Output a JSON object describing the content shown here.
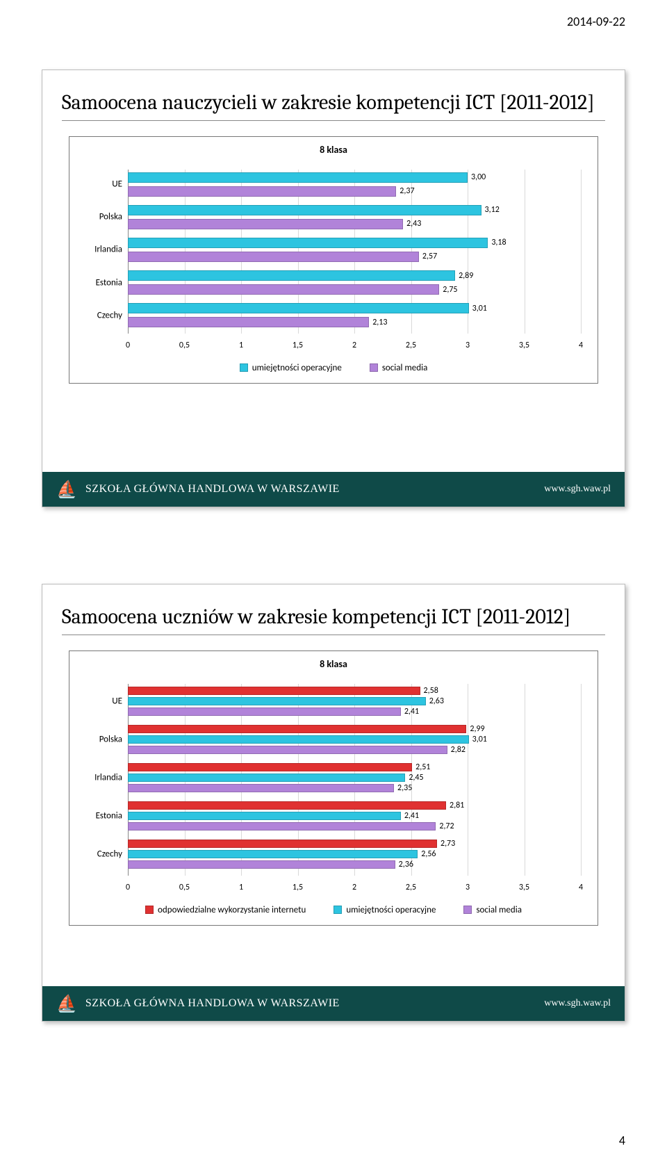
{
  "page": {
    "date": "2014-09-22",
    "number": "4"
  },
  "colors": {
    "cyan": "#2dc4e0",
    "violet": "#b183d9",
    "red": "#e03131",
    "footer_bg": "#0f4a48",
    "grid": "#d9d9d9",
    "baseline": "#888888"
  },
  "footer": {
    "institution": "SZKOŁA GŁÓWNA HANDLOWA W WARSZAWIE",
    "url": "www.sgh.waw.pl",
    "icon": "⛵"
  },
  "slide1": {
    "title": "Samoocena nauczycieli w zakresie kompetencji ICT [2011-2012]",
    "chart_title": "8 klasa",
    "xmax": 4,
    "xtick_step": 0.5,
    "categories": [
      "UE",
      "Polska",
      "Irlandia",
      "Estonia",
      "Czechy"
    ],
    "series": [
      {
        "name": "umiejętności operacyjne",
        "color_key": "cyan",
        "values": [
          3.0,
          3.12,
          3.18,
          2.89,
          3.01
        ],
        "labels": [
          "3,00",
          "3,12",
          "3,18",
          "2,89",
          "3,01"
        ]
      },
      {
        "name": "social media",
        "color_key": "violet",
        "values": [
          2.37,
          2.43,
          2.57,
          2.75,
          2.13
        ],
        "labels": [
          "2,37",
          "2,43",
          "2,57",
          "2,75",
          "2,13"
        ]
      }
    ],
    "xticks": [
      "0",
      "0,5",
      "1",
      "1,5",
      "2",
      "2,5",
      "3",
      "3,5",
      "4"
    ]
  },
  "slide2": {
    "title": "Samoocena uczniów w zakresie kompetencji ICT [2011-2012]",
    "chart_title": "8 klasa",
    "xmax": 4,
    "xtick_step": 0.5,
    "categories": [
      "UE",
      "Polska",
      "Irlandia",
      "Estonia",
      "Czechy"
    ],
    "series": [
      {
        "name": "odpowiedzialne wykorzystanie internetu",
        "color_key": "red",
        "values": [
          2.58,
          2.99,
          2.51,
          2.81,
          2.73
        ],
        "labels": [
          "2,58",
          "2,99",
          "2,51",
          "2,81",
          "2,73"
        ]
      },
      {
        "name": "umiejętności operacyjne",
        "color_key": "cyan",
        "values": [
          2.63,
          3.01,
          2.45,
          2.41,
          2.56
        ],
        "labels": [
          "2,63",
          "3,01",
          "2,45",
          "2,41",
          "2,56"
        ]
      },
      {
        "name": "social media",
        "color_key": "violet",
        "values": [
          2.41,
          2.82,
          2.35,
          2.72,
          2.36
        ],
        "labels": [
          "2,41",
          "2,82",
          "2,35",
          "2,72",
          "2,36"
        ]
      }
    ],
    "xticks": [
      "0",
      "0,5",
      "1",
      "1,5",
      "2",
      "2,5",
      "3",
      "3,5",
      "4"
    ]
  }
}
